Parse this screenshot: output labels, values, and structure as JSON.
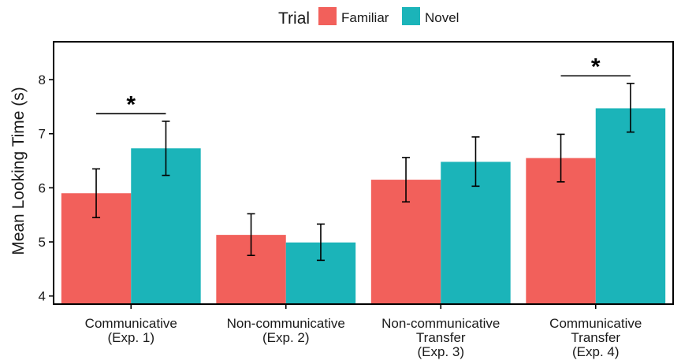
{
  "chart_data": {
    "type": "bar",
    "ylabel": "Mean Looking Time (s)",
    "xlabel": "",
    "ylim": [
      3.85,
      8.7
    ],
    "yticks": [
      4,
      5,
      6,
      7,
      8
    ],
    "grid": false,
    "legend": {
      "title": "Trial",
      "position": "top-center"
    },
    "categories": [
      [
        "Communicative",
        "(Exp. 1)"
      ],
      [
        "Non-communicative",
        "(Exp. 2)"
      ],
      [
        "Non-communicative",
        "Transfer",
        "(Exp. 3)"
      ],
      [
        "Communicative",
        "Transfer",
        "(Exp. 4)"
      ]
    ],
    "series": [
      {
        "name": "Familiar",
        "color": "#F2605B",
        "values": [
          5.9,
          5.13,
          6.15,
          6.55
        ],
        "error_low": [
          5.45,
          4.75,
          5.74,
          6.11
        ],
        "error_high": [
          6.35,
          5.52,
          6.56,
          6.99
        ]
      },
      {
        "name": "Novel",
        "color": "#1BB4B9",
        "values": [
          6.73,
          4.99,
          6.48,
          7.47
        ],
        "error_low": [
          6.23,
          4.66,
          6.03,
          7.03
        ],
        "error_high": [
          7.23,
          5.33,
          6.94,
          7.93
        ]
      }
    ],
    "annotations": [
      {
        "category_index": 0,
        "text": "*",
        "y": 7.37
      },
      {
        "category_index": 3,
        "text": "*",
        "y": 8.07
      }
    ]
  }
}
